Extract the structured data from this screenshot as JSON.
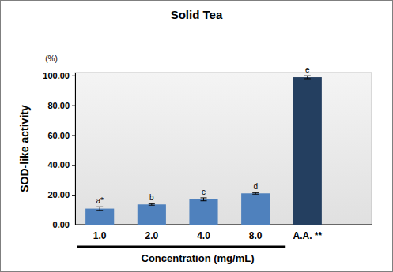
{
  "chart_data": {
    "type": "bar",
    "title": "Solid Tea",
    "y_label": "SOD-like activity",
    "y_unit": "(%)",
    "x_label": "Concentration (mg/mL)",
    "categories": [
      "1.0",
      "2.0",
      "4.0",
      "8.0",
      "A.A. **"
    ],
    "values": [
      10.8,
      13.6,
      17.0,
      21.0,
      98.8
    ],
    "errors": [
      1.2,
      0.5,
      1.0,
      0.5,
      1.0
    ],
    "annotations": [
      "a*",
      "b",
      "c",
      "d",
      "e"
    ],
    "colors": [
      "#4f81bd",
      "#4f81bd",
      "#4f81bd",
      "#4f81bd",
      "#243f60"
    ],
    "ylim": [
      0,
      102
    ],
    "yticks": [
      {
        "value": 0,
        "label": "0.00"
      },
      {
        "value": 20,
        "label": "20.00"
      },
      {
        "value": 40,
        "label": "40.00"
      },
      {
        "value": 60,
        "label": "60.00"
      },
      {
        "value": 80,
        "label": "80.00"
      },
      {
        "value": 100,
        "label": "100.00"
      }
    ],
    "grid": false
  }
}
